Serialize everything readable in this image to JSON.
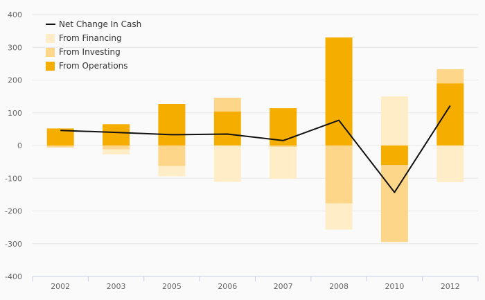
{
  "chart_data": {
    "type": "bar",
    "stacked": true,
    "title": "",
    "xlabel": "",
    "ylabel": "",
    "ylim": [
      -400,
      400
    ],
    "yticks": [
      400,
      300,
      200,
      100,
      0,
      -100,
      -200,
      -300,
      -400
    ],
    "categories": [
      "2002",
      "2003",
      "2005",
      "2006",
      "2007",
      "2008",
      "2010",
      "2012"
    ],
    "series": [
      {
        "name": "From Operations",
        "color": "#f5ad00",
        "values": [
          52,
          65,
          127,
          104,
          114,
          330,
          -60,
          190
        ]
      },
      {
        "name": "From Investing",
        "color": "#fdd68a",
        "values": [
          -6,
          -12,
          -63,
          42,
          -4,
          -177,
          -235,
          43
        ]
      },
      {
        "name": "From Financing",
        "color": "#feedc6",
        "values": [
          0,
          -15,
          -31,
          -111,
          -98,
          -80,
          150,
          -112
        ]
      }
    ],
    "line": {
      "name": "Net Change In Cash",
      "color": "#111111",
      "values": [
        46,
        40,
        33,
        35,
        15,
        77,
        -143,
        122
      ]
    },
    "legend": [
      {
        "label": "Net Change In Cash",
        "kind": "line",
        "color": "#111111"
      },
      {
        "label": "From Financing",
        "kind": "box",
        "color": "#feedc6"
      },
      {
        "label": "From Investing",
        "kind": "box",
        "color": "#fdd68a"
      },
      {
        "label": "From Operations",
        "kind": "box",
        "color": "#f5ad00"
      }
    ],
    "legend_position": "top-left"
  }
}
